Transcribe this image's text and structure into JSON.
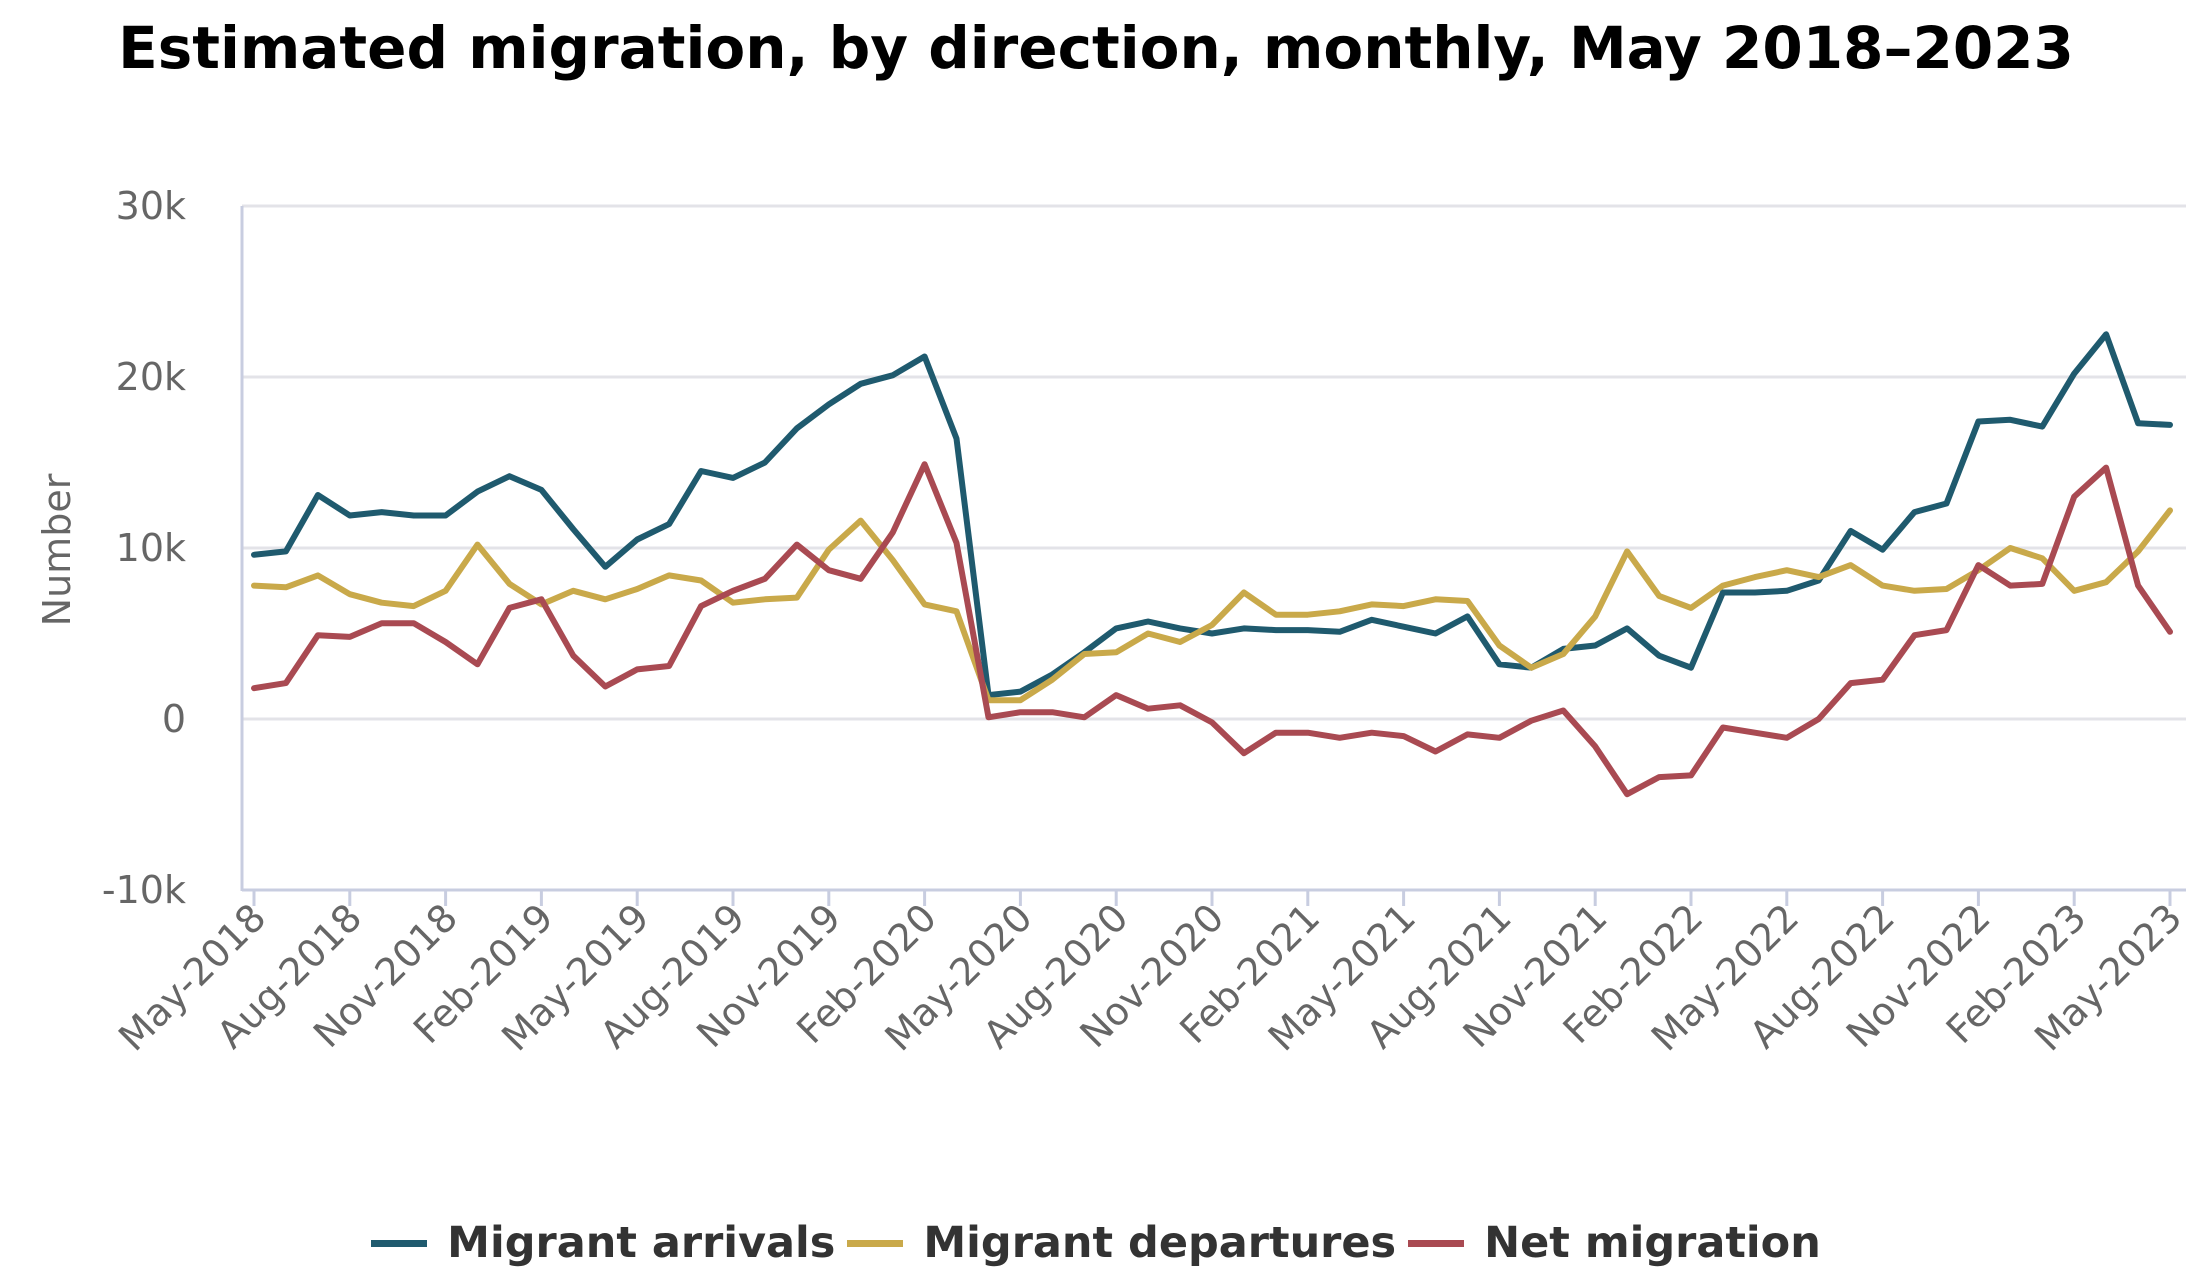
{
  "chart_data": {
    "type": "line",
    "title": "Estimated migration, by direction, monthly, May 2018–2023",
    "ylabel": "Number",
    "ylim": [
      -10000,
      30000
    ],
    "yticks": [
      {
        "value": 30000,
        "label": "30k"
      },
      {
        "value": 20000,
        "label": "20k"
      },
      {
        "value": 10000,
        "label": "10k"
      },
      {
        "value": 0,
        "label": "0"
      },
      {
        "value": -10000,
        "label": "-10k"
      }
    ],
    "x": [
      "May-2018",
      "Jun-2018",
      "Jul-2018",
      "Aug-2018",
      "Sep-2018",
      "Oct-2018",
      "Nov-2018",
      "Dec-2018",
      "Jan-2019",
      "Feb-2019",
      "Mar-2019",
      "Apr-2019",
      "May-2019",
      "Jun-2019",
      "Jul-2019",
      "Aug-2019",
      "Sep-2019",
      "Oct-2019",
      "Nov-2019",
      "Dec-2019",
      "Jan-2020",
      "Feb-2020",
      "Mar-2020",
      "Apr-2020",
      "May-2020",
      "Jun-2020",
      "Jul-2020",
      "Aug-2020",
      "Sep-2020",
      "Oct-2020",
      "Nov-2020",
      "Dec-2020",
      "Jan-2021",
      "Feb-2021",
      "Mar-2021",
      "Apr-2021",
      "May-2021",
      "Jun-2021",
      "Jul-2021",
      "Aug-2021",
      "Sep-2021",
      "Oct-2021",
      "Nov-2021",
      "Dec-2021",
      "Jan-2022",
      "Feb-2022",
      "Mar-2022",
      "Apr-2022",
      "May-2022",
      "Jun-2022",
      "Jul-2022",
      "Aug-2022",
      "Sep-2022",
      "Oct-2022",
      "Nov-2022",
      "Dec-2022",
      "Jan-2023",
      "Feb-2023",
      "Mar-2023",
      "Apr-2023",
      "May-2023"
    ],
    "x_tick_labels": [
      "May-2018",
      "Aug-2018",
      "Nov-2018",
      "Feb-2019",
      "May-2019",
      "Aug-2019",
      "Nov-2019",
      "Feb-2020",
      "May-2020",
      "Aug-2020",
      "Nov-2020",
      "Feb-2021",
      "May-2021",
      "Aug-2021",
      "Nov-2021",
      "Feb-2022",
      "May-2022",
      "Aug-2022",
      "Nov-2022",
      "Feb-2023",
      "May-2023"
    ],
    "series": [
      {
        "name": "Migrant arrivals",
        "color": "#1f5a6e",
        "values": [
          9600,
          9800,
          13100,
          11900,
          12100,
          11900,
          11900,
          13300,
          14200,
          13400,
          11100,
          8900,
          10500,
          11400,
          14500,
          14100,
          15000,
          17000,
          18400,
          19600,
          20100,
          21200,
          16400,
          1400,
          1600,
          2600,
          3900,
          5300,
          5700,
          5300,
          5000,
          5300,
          5200,
          5200,
          5100,
          5800,
          5400,
          5000,
          6000,
          3200,
          3000,
          4100,
          4300,
          5300,
          3700,
          3000,
          7400,
          7400,
          7500,
          8100,
          11000,
          9900,
          12100,
          12600,
          17400,
          17500,
          17100,
          20200,
          22500,
          17300,
          17200
        ]
      },
      {
        "name": "Migrant departures",
        "color": "#c9a94a",
        "values": [
          7800,
          7700,
          8400,
          7300,
          6800,
          6600,
          7500,
          10200,
          7900,
          6700,
          7500,
          7000,
          7600,
          8400,
          8100,
          6800,
          7000,
          7100,
          9900,
          11600,
          9300,
          6700,
          6300,
          1100,
          1100,
          2300,
          3800,
          3900,
          5000,
          4500,
          5500,
          7400,
          6100,
          6100,
          6300,
          6700,
          6600,
          7000,
          6900,
          4300,
          3000,
          3800,
          6000,
          9800,
          7200,
          6500,
          7800,
          8300,
          8700,
          8300,
          9000,
          7800,
          7500,
          7600,
          8700,
          10000,
          9400,
          7500,
          8000,
          9800,
          12200
        ]
      },
      {
        "name": "Net migration",
        "color": "#a94a52",
        "values": [
          1800,
          2100,
          4900,
          4800,
          5600,
          5600,
          4500,
          3200,
          6500,
          7000,
          3700,
          1900,
          2900,
          3100,
          6600,
          7500,
          8200,
          10200,
          8700,
          8200,
          10900,
          14900,
          10300,
          100,
          400,
          400,
          100,
          1400,
          600,
          800,
          -200,
          -2000,
          -800,
          -800,
          -1100,
          -800,
          -1000,
          -1900,
          -900,
          -1100,
          -100,
          500,
          -1600,
          -4400,
          -3400,
          -3300,
          -500,
          -800,
          -1100,
          0,
          2100,
          2300,
          4900,
          5200,
          9000,
          7800,
          7900,
          13000,
          14700,
          7800,
          5100
        ]
      }
    ]
  }
}
